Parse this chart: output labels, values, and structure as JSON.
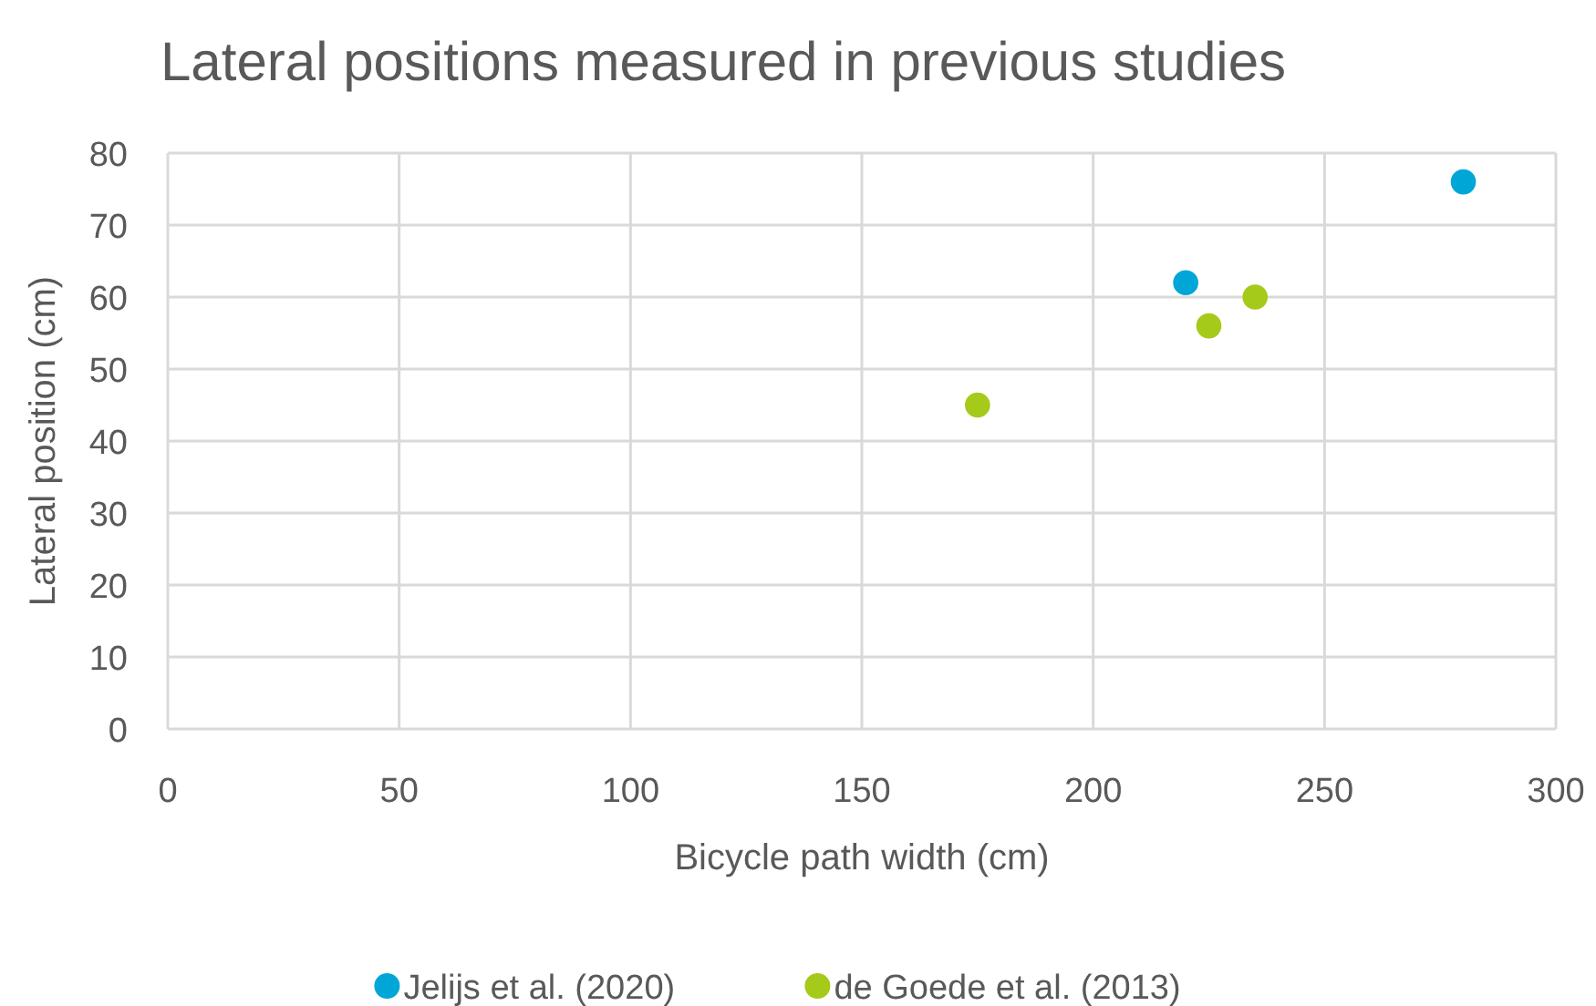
{
  "chart_data": {
    "type": "scatter",
    "title": "Lateral positions measured in previous studies",
    "xlabel": "Bicycle path width (cm)",
    "ylabel": "Lateral position (cm)",
    "series": [
      {
        "name": "Jelijs et al. (2020)",
        "color": "#00a6d6",
        "x": [
          220,
          280
        ],
        "values": [
          62,
          76
        ]
      },
      {
        "name": "de Goede et al. (2013)",
        "color": "#a5ca1a",
        "x": [
          175,
          225,
          235
        ],
        "values": [
          45,
          56,
          60
        ]
      }
    ],
    "xlim": [
      0,
      300
    ],
    "xticks": [
      0,
      50,
      100,
      150,
      200,
      250,
      300
    ],
    "ylim": [
      0,
      80
    ],
    "yticks": [
      0,
      10,
      20,
      30,
      40,
      50,
      60,
      70,
      80
    ],
    "grid": true,
    "legend": "bottom",
    "marker": "circle"
  }
}
